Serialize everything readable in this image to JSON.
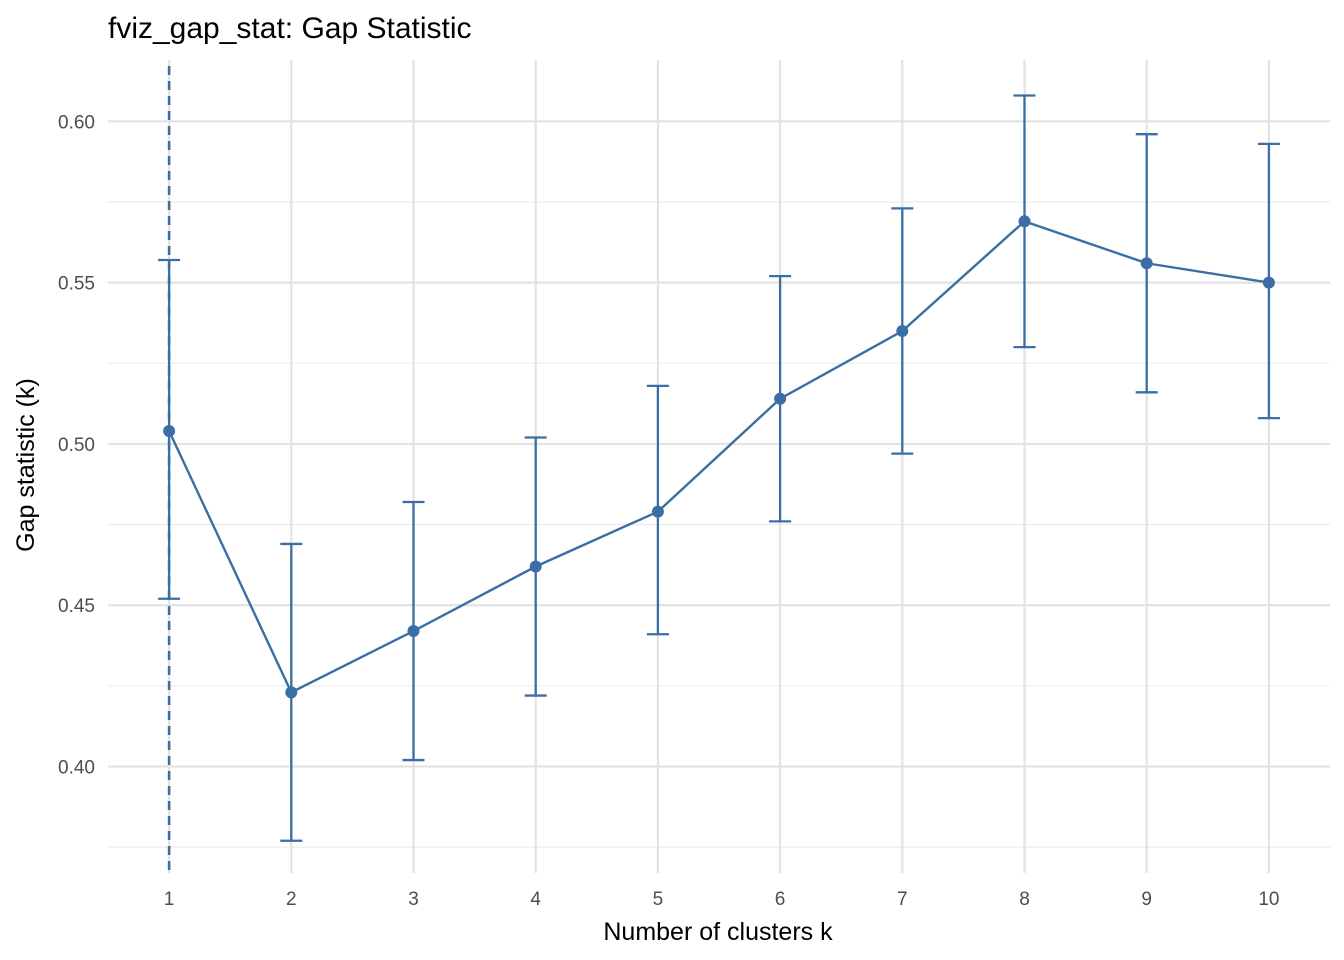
{
  "chart_data": {
    "type": "line",
    "title": "fviz_gap_stat: Gap Statistic",
    "xlabel": "Number of clusters k",
    "ylabel": "Gap statistic (k)",
    "x": [
      1,
      2,
      3,
      4,
      5,
      6,
      7,
      8,
      9,
      10
    ],
    "x_tick_labels": [
      "1",
      "2",
      "3",
      "4",
      "5",
      "6",
      "7",
      "8",
      "9",
      "10"
    ],
    "y_ticks": [
      0.4,
      0.45,
      0.5,
      0.55,
      0.6
    ],
    "y_tick_labels": [
      "0.40",
      "0.45",
      "0.50",
      "0.55",
      "0.60"
    ],
    "ylim": [
      0.367,
      0.619
    ],
    "series": [
      {
        "values": [
          0.504,
          0.423,
          0.442,
          0.462,
          0.479,
          0.514,
          0.535,
          0.569,
          0.556,
          0.55
        ],
        "error_lower": [
          0.452,
          0.377,
          0.402,
          0.422,
          0.441,
          0.476,
          0.497,
          0.53,
          0.516,
          0.508
        ],
        "error_upper": [
          0.557,
          0.469,
          0.482,
          0.502,
          0.518,
          0.552,
          0.573,
          0.608,
          0.596,
          0.593
        ]
      }
    ],
    "optimal_k_line": 1,
    "line_color": "#3a6ea5",
    "grid": true,
    "legend": "none"
  }
}
